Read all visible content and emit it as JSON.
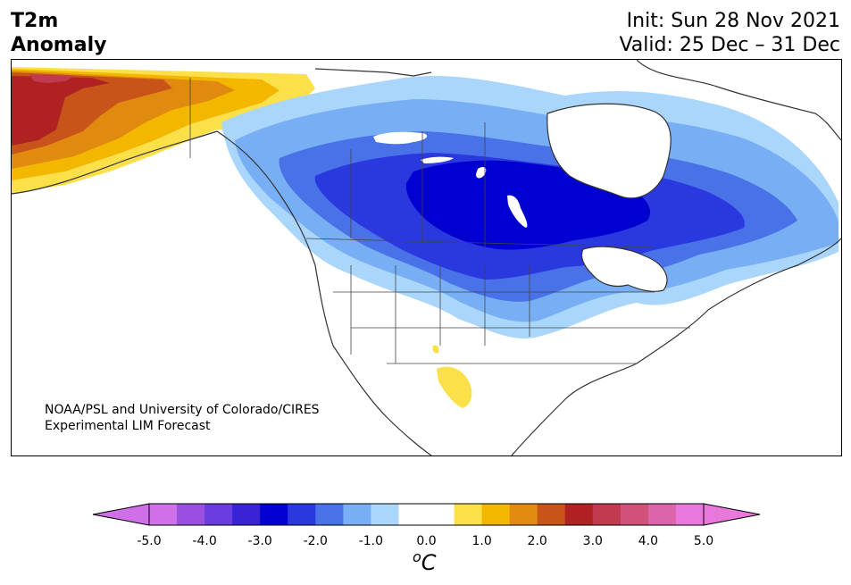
{
  "title": {
    "line1": "T2m",
    "line2": "Anomaly"
  },
  "forecast": {
    "init": "Init: Sun 28 Nov 2021",
    "valid": "Valid: 25 Dec – 31 Dec"
  },
  "credit": {
    "line1": "NOAA/PSL and University of Colorado/CIRES",
    "line2": "Experimental LIM Forecast"
  },
  "colorbar": {
    "unit_prefix": "o",
    "unit_main": "C",
    "min": -5.0,
    "max": 5.0,
    "ticks": [
      "-5.0",
      "-4.0",
      "-3.0",
      "-2.0",
      "-1.0",
      "0.0",
      "1.0",
      "2.0",
      "3.0",
      "4.0",
      "5.0"
    ],
    "bins": [
      "#d070e8",
      "#9a4fe0",
      "#6a3de0",
      "#3a22d6",
      "#0000d0",
      "#2a38e0",
      "#4a72e8",
      "#78aef4",
      "#aad6fc",
      "#ffffff",
      "#ffffff",
      "#fce04a",
      "#f3b700",
      "#e08a10",
      "#c8541a",
      "#b02222",
      "#c23a50",
      "#d05278",
      "#dc64aa",
      "#e878dc"
    ],
    "extend_low": "#d070e8",
    "extend_high": "#e878dc"
  },
  "colors": {
    "coast": "#333333",
    "lakes": "#ffffff"
  }
}
